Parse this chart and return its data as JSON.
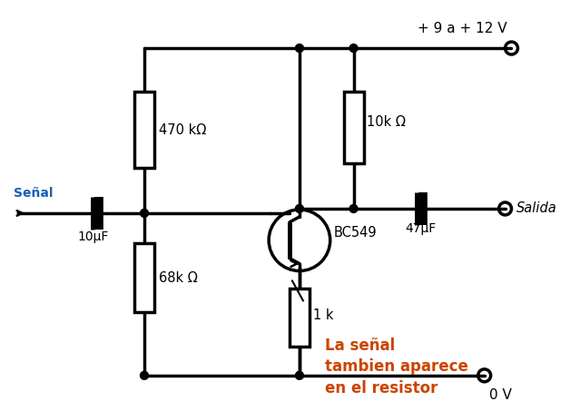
{
  "bg_color": "#ffffff",
  "line_color": "#000000",
  "figsize": [
    6.39,
    4.53
  ],
  "dpi": 100,
  "supply_label": "+ 9 a + 12 V",
  "gnd_label": "0 V",
  "salida_label": "Salida",
  "senal_label": "Señal",
  "transistor_label": "BC549",
  "r1_label": "470 kΩ",
  "r2_label": "68k Ω",
  "rc_label": "10k Ω",
  "re_label": "1 k",
  "c1_label": "10μF",
  "c2_label": "47μF",
  "note_label": "La señal\ntambien aparece\nen el resistor",
  "note_color": "#cc4400",
  "blue_color": "#1a5fb4"
}
